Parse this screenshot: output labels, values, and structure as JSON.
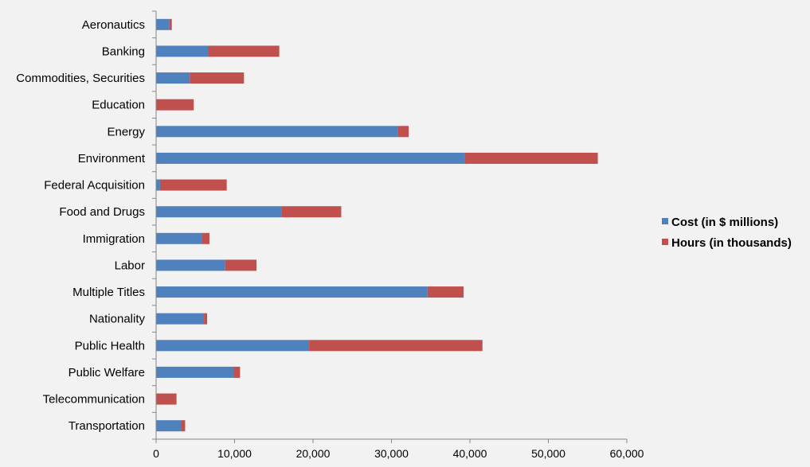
{
  "chart_data": {
    "type": "bar",
    "orientation": "horizontal",
    "stacked": true,
    "title": "",
    "xlabel": "",
    "ylabel": "",
    "categories": [
      "Aeronautics",
      "Banking",
      "Commodities, Securities",
      "Education",
      "Energy",
      "Environment",
      "Federal Acquisition",
      "Food and Drugs",
      "Immigration",
      "Labor",
      "Multiple Titles",
      "Nationality",
      "Public Health",
      "Public Welfare",
      "Telecommunication",
      "Transportation"
    ],
    "series": [
      {
        "name": "Cost (in $ millions)",
        "color": "#4f81bd",
        "values": [
          1700,
          6700,
          4300,
          0,
          30800,
          39300,
          500,
          16000,
          5800,
          8800,
          34600,
          6100,
          19500,
          9900,
          0,
          3200
        ]
      },
      {
        "name": "Hours (in thousands)",
        "color": "#c0504d",
        "values": [
          300,
          9000,
          6900,
          4800,
          1400,
          17000,
          8500,
          7600,
          1000,
          4000,
          4600,
          400,
          22100,
          800,
          2600,
          500
        ]
      }
    ],
    "xlim": [
      0,
      60000
    ],
    "xticks": [
      0,
      10000,
      20000,
      30000,
      40000,
      50000,
      60000
    ],
    "xtick_labels": [
      "0",
      "10,000",
      "20,000",
      "30,000",
      "40,000",
      "50,000",
      "60,000"
    ],
    "grid": false,
    "legend_position": "right"
  }
}
